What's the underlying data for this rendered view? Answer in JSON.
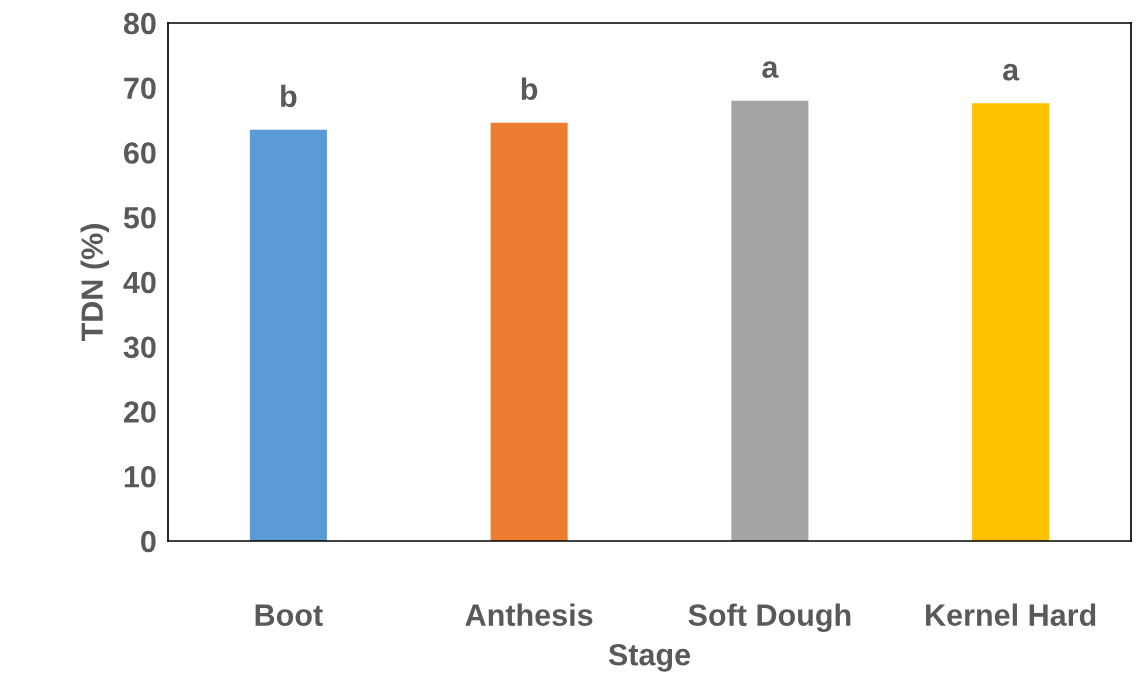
{
  "chart_data": {
    "type": "bar",
    "xlabel": "Stage",
    "ylabel": "TDN (%)",
    "categories": [
      "Boot",
      "Anthesis",
      "Soft Dough",
      "Kernel Hard"
    ],
    "values": [
      63.5,
      64.6,
      68.0,
      67.6
    ],
    "colors": [
      "#5b9bd5",
      "#ed7d31",
      "#a5a5a5",
      "#ffc000"
    ],
    "ylim": [
      0,
      80
    ],
    "yticks": [
      0,
      10,
      20,
      30,
      40,
      50,
      60,
      70,
      80
    ],
    "grid": false,
    "annotations": [
      {
        "text": "b",
        "x": "Boot",
        "y": 63.5
      },
      {
        "text": "b",
        "x": "Anthesis",
        "y": 64.6
      },
      {
        "text": "a",
        "x": "Soft Dough",
        "y": 68.0
      },
      {
        "text": "a",
        "x": "Kernel Hard",
        "y": 67.6
      }
    ]
  }
}
